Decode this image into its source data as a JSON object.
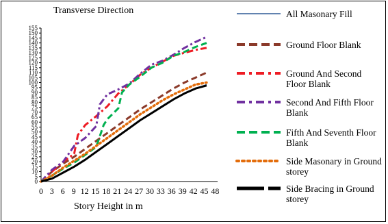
{
  "chart_data": {
    "type": "line",
    "title": "Transverse Direction",
    "xlabel": "Story  Height in m",
    "ylabel": "",
    "x_tick_labels": [
      "0",
      "3",
      "6",
      "9",
      "12",
      "15",
      "18",
      "21",
      "24",
      "27",
      "30",
      "33",
      "36",
      "39",
      "42",
      "45",
      "48"
    ],
    "xlim": [
      0,
      48
    ],
    "ylim": [
      0,
      155
    ],
    "y_ticks": [
      0,
      5,
      10,
      15,
      20,
      25,
      30,
      35,
      40,
      45,
      50,
      55,
      60,
      65,
      70,
      75,
      80,
      85,
      90,
      95,
      100,
      105,
      110,
      115,
      120,
      125,
      130,
      135,
      140,
      145,
      150,
      155
    ],
    "grid": false,
    "legend_position": "right",
    "series": [
      {
        "name": "All Masonary Fill",
        "color": "#2e5a95",
        "dash": "solid",
        "x": [
          0,
          3,
          6,
          9,
          12,
          15,
          18,
          21,
          24,
          27,
          30,
          33,
          36,
          39,
          42,
          45
        ],
        "y": [
          0,
          3,
          9,
          15,
          22,
          30,
          38,
          46,
          54,
          62,
          69,
          76,
          83,
          89,
          94,
          98
        ]
      },
      {
        "name": "Ground Floor Blank",
        "color": "#8b3a2a",
        "dash": "dash",
        "x": [
          0,
          3,
          6,
          9,
          12,
          15,
          18,
          21,
          24,
          27,
          30,
          33,
          36,
          39,
          42,
          45
        ],
        "y": [
          0,
          10,
          18,
          25,
          33,
          41,
          49,
          57,
          65,
          73,
          80,
          87,
          94,
          100,
          105,
          110
        ]
      },
      {
        "name": "Ground And Second Floor Blank",
        "color": "#ee1c24",
        "dash": "dashdot",
        "x": [
          0,
          3,
          6,
          9,
          10,
          12,
          15,
          18,
          21,
          24,
          27,
          30,
          33,
          36,
          39,
          42,
          45
        ],
        "y": [
          0,
          10,
          20,
          28,
          47,
          57,
          66,
          76,
          89,
          98,
          108,
          115,
          121,
          127,
          130,
          133,
          135
        ]
      },
      {
        "name": "Second And Fifth Floor Blank",
        "color": "#7030a0",
        "dash": "dashdot",
        "x": [
          0,
          3,
          6,
          9,
          12,
          15,
          16,
          18,
          21,
          24,
          27,
          30,
          33,
          36,
          39,
          42,
          45
        ],
        "y": [
          0,
          12,
          20,
          36,
          44,
          56,
          78,
          88,
          93,
          99,
          109,
          118,
          122,
          128,
          135,
          141,
          146
        ]
      },
      {
        "name": "Fifth And Seventh Floor Blank",
        "color": "#00b050",
        "dash": "dash",
        "x": [
          0,
          3,
          6,
          9,
          12,
          15,
          17,
          18,
          21,
          22,
          24,
          27,
          30,
          33,
          36,
          39,
          42,
          45
        ],
        "y": [
          0,
          6,
          13,
          19,
          27,
          35,
          57,
          63,
          74,
          90,
          98,
          106,
          115,
          120,
          127,
          131,
          136,
          140
        ]
      },
      {
        "name": "Side Masonary in Ground storey",
        "color": "#e36c0a",
        "dash": "dot",
        "x": [
          0,
          3,
          6,
          9,
          12,
          15,
          18,
          21,
          24,
          27,
          30,
          33,
          36,
          39,
          42,
          45
        ],
        "y": [
          0,
          6,
          14,
          21,
          28,
          36,
          44,
          52,
          60,
          68,
          75,
          82,
          88,
          93,
          98,
          100
        ]
      },
      {
        "name": "Side Bracing in Ground storey",
        "color": "#000000",
        "dash": "solid-thick",
        "x": [
          0,
          3,
          6,
          9,
          12,
          15,
          18,
          21,
          24,
          27,
          30,
          33,
          36,
          39,
          42,
          45
        ],
        "y": [
          0,
          3,
          9,
          15,
          22,
          30,
          38,
          46,
          54,
          62,
          69,
          76,
          83,
          89,
          94,
          97
        ]
      }
    ]
  },
  "legend": {
    "labels": [
      "All Masonary Fill",
      "Ground Floor Blank",
      "Ground And Second Floor Blank",
      "Second And Fifth Floor Blank",
      "Fifth And Seventh Floor Blank",
      "Side Masonary in Ground storey",
      "Side Bracing in Ground storey"
    ]
  }
}
